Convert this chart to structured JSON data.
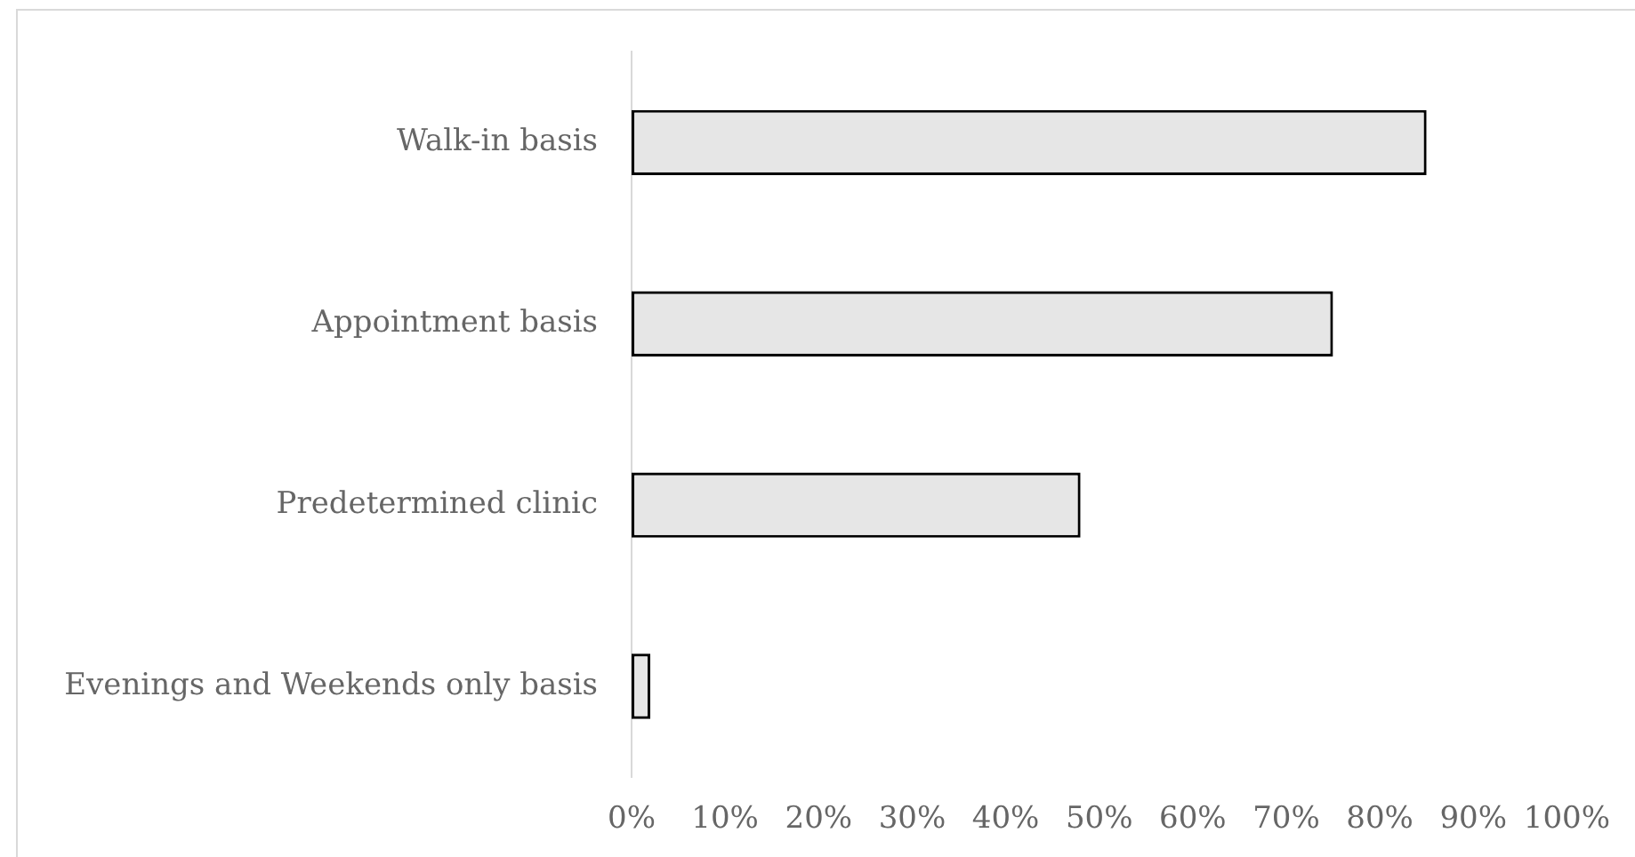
{
  "chart_data": {
    "type": "bar",
    "orientation": "horizontal",
    "categories": [
      "Walk-in basis",
      "Appointment basis",
      "Predetermined clinic",
      "Evenings and Weekends only basis"
    ],
    "values": [
      85,
      75,
      48,
      2
    ],
    "color": "#e6e6e6",
    "xlim": [
      0,
      100
    ],
    "xticks": [
      {
        "value": 0,
        "label": "0%"
      },
      {
        "value": 10,
        "label": "10%"
      },
      {
        "value": 20,
        "label": "20%"
      },
      {
        "value": 30,
        "label": "30%"
      },
      {
        "value": 40,
        "label": "40%"
      },
      {
        "value": 50,
        "label": "50%"
      },
      {
        "value": 60,
        "label": "60%"
      },
      {
        "value": 70,
        "label": "70%"
      },
      {
        "value": 80,
        "label": "80%"
      },
      {
        "value": 90,
        "label": "90%"
      },
      {
        "value": 100,
        "label": "100%"
      }
    ],
    "grid": false
  }
}
